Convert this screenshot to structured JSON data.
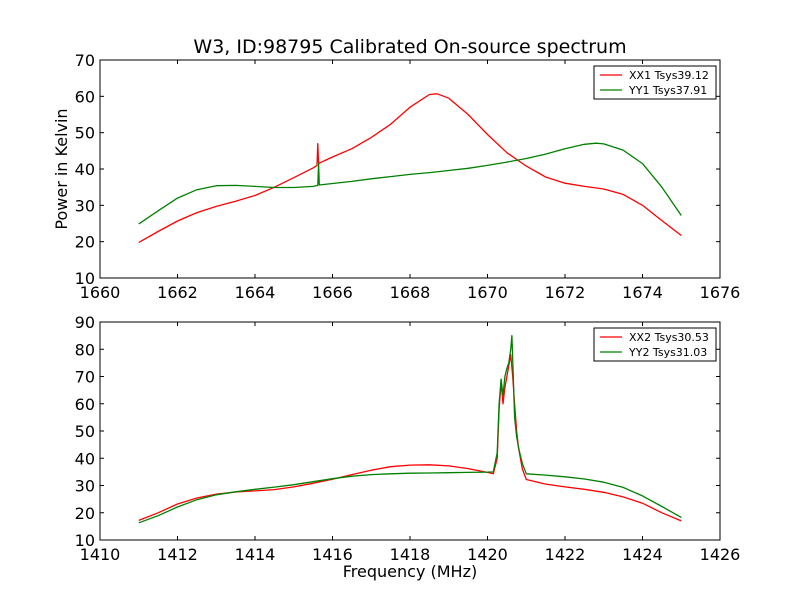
{
  "figure": {
    "title": "W3, ID:98795 Calibrated On-source spectrum"
  },
  "chart_data": [
    {
      "type": "line",
      "title": "W3, ID:98795 Calibrated On-source spectrum",
      "xlabel": "",
      "ylabel": "Power in Kelvin",
      "xlim": [
        1660,
        1676
      ],
      "ylim": [
        10,
        70
      ],
      "xticks": [
        1660,
        1662,
        1664,
        1666,
        1668,
        1670,
        1672,
        1674,
        1676
      ],
      "yticks": [
        10,
        20,
        30,
        40,
        50,
        60,
        70
      ],
      "grid": false,
      "legend": "top-right",
      "series": [
        {
          "name": "XX1 Tsys39.12",
          "color": "#ff0000",
          "points": [
            [
              1661.0,
              19.8
            ],
            [
              1661.5,
              22.8
            ],
            [
              1662.0,
              25.7
            ],
            [
              1662.5,
              28.0
            ],
            [
              1663.0,
              29.7
            ],
            [
              1663.5,
              31.1
            ],
            [
              1664.0,
              32.7
            ],
            [
              1664.5,
              35.0
            ],
            [
              1665.0,
              37.6
            ],
            [
              1665.5,
              40.3
            ],
            [
              1665.6,
              41.0
            ],
            [
              1665.62,
              47.0
            ],
            [
              1665.64,
              41.5
            ],
            [
              1665.8,
              42.3
            ],
            [
              1666.0,
              43.3
            ],
            [
              1666.5,
              45.6
            ],
            [
              1667.0,
              48.7
            ],
            [
              1667.5,
              52.3
            ],
            [
              1668.0,
              57.0
            ],
            [
              1668.5,
              60.5
            ],
            [
              1668.7,
              60.7
            ],
            [
              1669.0,
              59.5
            ],
            [
              1669.5,
              55.0
            ],
            [
              1670.0,
              49.5
            ],
            [
              1670.5,
              44.5
            ],
            [
              1671.0,
              40.8
            ],
            [
              1671.5,
              37.8
            ],
            [
              1672.0,
              36.1
            ],
            [
              1672.5,
              35.2
            ],
            [
              1673.0,
              34.5
            ],
            [
              1673.5,
              33.0
            ],
            [
              1674.0,
              30.0
            ],
            [
              1674.5,
              25.8
            ],
            [
              1675.0,
              21.7
            ]
          ]
        },
        {
          "name": "YY1 Tsys37.91",
          "color": "#008000",
          "points": [
            [
              1661.0,
              24.9
            ],
            [
              1661.5,
              28.5
            ],
            [
              1662.0,
              32.0
            ],
            [
              1662.5,
              34.3
            ],
            [
              1663.0,
              35.4
            ],
            [
              1663.5,
              35.5
            ],
            [
              1664.0,
              35.2
            ],
            [
              1664.5,
              34.9
            ],
            [
              1665.0,
              34.9
            ],
            [
              1665.5,
              35.2
            ],
            [
              1665.62,
              35.5
            ],
            [
              1665.64,
              41.5
            ],
            [
              1665.66,
              35.6
            ],
            [
              1666.0,
              36.0
            ],
            [
              1666.5,
              36.6
            ],
            [
              1667.0,
              37.3
            ],
            [
              1667.5,
              37.9
            ],
            [
              1668.0,
              38.5
            ],
            [
              1668.5,
              39.0
            ],
            [
              1669.0,
              39.6
            ],
            [
              1669.5,
              40.2
            ],
            [
              1670.0,
              41.0
            ],
            [
              1670.5,
              41.9
            ],
            [
              1671.0,
              42.9
            ],
            [
              1671.5,
              44.1
            ],
            [
              1672.0,
              45.6
            ],
            [
              1672.5,
              46.8
            ],
            [
              1672.8,
              47.1
            ],
            [
              1673.0,
              46.9
            ],
            [
              1673.5,
              45.2
            ],
            [
              1674.0,
              41.5
            ],
            [
              1674.5,
              35.0
            ],
            [
              1675.0,
              27.2
            ]
          ]
        }
      ]
    },
    {
      "type": "line",
      "title": "",
      "xlabel": "Frequency (MHz)",
      "ylabel": "",
      "xlim": [
        1410,
        1426
      ],
      "ylim": [
        10,
        90
      ],
      "xticks": [
        1410,
        1412,
        1414,
        1416,
        1418,
        1420,
        1422,
        1424,
        1426
      ],
      "yticks": [
        10,
        20,
        30,
        40,
        50,
        60,
        70,
        80,
        90
      ],
      "grid": false,
      "legend": "top-right",
      "series": [
        {
          "name": "XX2 Tsys30.53",
          "color": "#ff0000",
          "points": [
            [
              1411.0,
              17.2
            ],
            [
              1411.5,
              20.0
            ],
            [
              1412.0,
              23.2
            ],
            [
              1412.5,
              25.4
            ],
            [
              1413.0,
              26.8
            ],
            [
              1413.5,
              27.6
            ],
            [
              1414.0,
              28.0
            ],
            [
              1414.5,
              28.5
            ],
            [
              1415.0,
              29.5
            ],
            [
              1415.5,
              30.8
            ],
            [
              1416.0,
              32.3
            ],
            [
              1416.5,
              34.0
            ],
            [
              1417.0,
              35.6
            ],
            [
              1417.5,
              36.9
            ],
            [
              1418.0,
              37.5
            ],
            [
              1418.5,
              37.6
            ],
            [
              1419.0,
              37.2
            ],
            [
              1419.5,
              36.2
            ],
            [
              1420.0,
              34.8
            ],
            [
              1420.15,
              34.3
            ],
            [
              1420.25,
              40.0
            ],
            [
              1420.3,
              58.0
            ],
            [
              1420.35,
              68.0
            ],
            [
              1420.4,
              60.0
            ],
            [
              1420.45,
              66.0
            ],
            [
              1420.5,
              70.0
            ],
            [
              1420.55,
              74.0
            ],
            [
              1420.6,
              78.0
            ],
            [
              1420.65,
              70.0
            ],
            [
              1420.7,
              60.0
            ],
            [
              1420.75,
              50.0
            ],
            [
              1420.8,
              44.0
            ],
            [
              1420.85,
              40.0
            ],
            [
              1420.9,
              36.0
            ],
            [
              1421.0,
              32.2
            ],
            [
              1421.5,
              30.5
            ],
            [
              1422.0,
              29.5
            ],
            [
              1422.5,
              28.6
            ],
            [
              1423.0,
              27.5
            ],
            [
              1423.5,
              25.8
            ],
            [
              1424.0,
              23.5
            ],
            [
              1424.5,
              20.0
            ],
            [
              1425.0,
              17.0
            ]
          ]
        },
        {
          "name": "YY2 Tsys31.03",
          "color": "#008000",
          "points": [
            [
              1411.0,
              16.3
            ],
            [
              1411.5,
              18.9
            ],
            [
              1412.0,
              22.1
            ],
            [
              1412.5,
              24.8
            ],
            [
              1413.0,
              26.6
            ],
            [
              1413.5,
              27.7
            ],
            [
              1414.0,
              28.6
            ],
            [
              1414.5,
              29.4
            ],
            [
              1415.0,
              30.3
            ],
            [
              1415.5,
              31.4
            ],
            [
              1416.0,
              32.5
            ],
            [
              1416.5,
              33.4
            ],
            [
              1417.0,
              34.0
            ],
            [
              1417.5,
              34.3
            ],
            [
              1418.0,
              34.5
            ],
            [
              1418.5,
              34.6
            ],
            [
              1419.0,
              34.7
            ],
            [
              1419.5,
              34.8
            ],
            [
              1420.0,
              34.9
            ],
            [
              1420.15,
              35.0
            ],
            [
              1420.25,
              42.0
            ],
            [
              1420.3,
              60.0
            ],
            [
              1420.35,
              69.0
            ],
            [
              1420.4,
              63.0
            ],
            [
              1420.45,
              70.0
            ],
            [
              1420.5,
              73.0
            ],
            [
              1420.55,
              75.0
            ],
            [
              1420.6,
              80.0
            ],
            [
              1420.63,
              85.0
            ],
            [
              1420.66,
              72.0
            ],
            [
              1420.7,
              55.0
            ],
            [
              1420.75,
              48.0
            ],
            [
              1420.8,
              44.0
            ],
            [
              1420.85,
              41.0
            ],
            [
              1420.9,
              38.0
            ],
            [
              1421.0,
              34.3
            ],
            [
              1421.5,
              33.8
            ],
            [
              1422.0,
              33.2
            ],
            [
              1422.5,
              32.4
            ],
            [
              1423.0,
              31.2
            ],
            [
              1423.5,
              29.3
            ],
            [
              1424.0,
              26.2
            ],
            [
              1424.5,
              22.3
            ],
            [
              1425.0,
              18.3
            ]
          ]
        }
      ]
    }
  ]
}
